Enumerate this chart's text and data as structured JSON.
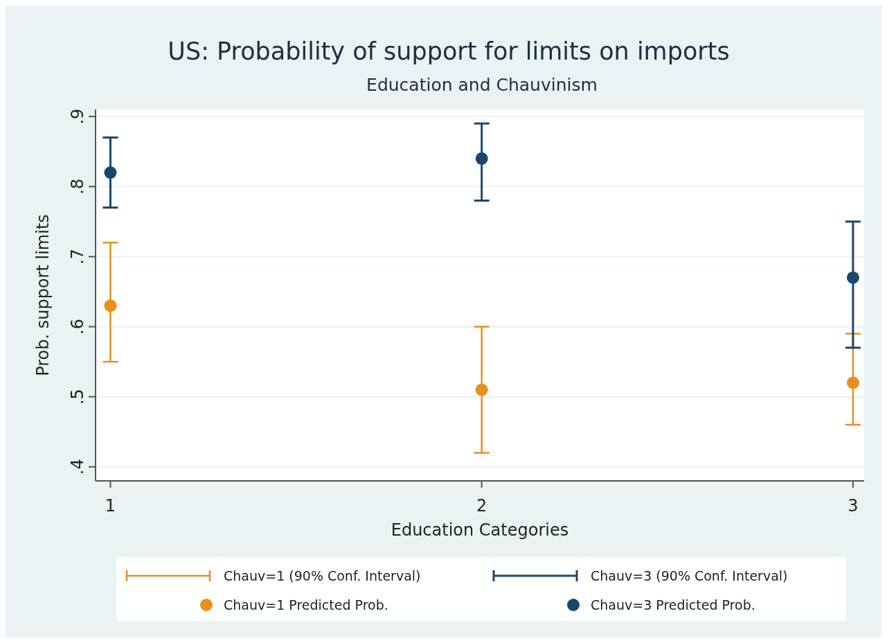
{
  "chart_data": {
    "type": "scatter",
    "title": "US: Probability of support for limits on imports",
    "subtitle": "Education and Chauvinism",
    "xlabel": "Education Categories",
    "ylabel": "Prob. support limits",
    "x": [
      1,
      2,
      3
    ],
    "xlim": [
      0.96,
      3.03
    ],
    "xticks": [
      1,
      2,
      3
    ],
    "ylim": [
      0.38,
      0.91
    ],
    "yticks": [
      {
        "value": 0.4,
        "label": ".4"
      },
      {
        "value": 0.5,
        "label": ".5"
      },
      {
        "value": 0.6,
        "label": ".6"
      },
      {
        "value": 0.7,
        "label": ".7"
      },
      {
        "value": 0.8,
        "label": ".8"
      },
      {
        "value": 0.9,
        "label": ".9"
      }
    ],
    "grid": "y",
    "legend": "bottom",
    "marker": "circle",
    "annotations": [
      "Chauv=1  (90% Conf. Interval)",
      "Chauv=3  (90% Conf. Interval)"
    ],
    "series": [
      {
        "name": "Chauv=1 Predicted Prob.",
        "color": "#e8901c",
        "values": [
          0.63,
          0.51,
          0.52
        ],
        "errors": [
          [
            0.55,
            0.72
          ],
          [
            0.42,
            0.6
          ],
          [
            0.46,
            0.59
          ]
        ]
      },
      {
        "name": "Chauv=3 Predicted Prob.",
        "color": "#1a476f",
        "values": [
          0.82,
          0.84,
          0.67
        ],
        "errors": [
          [
            0.77,
            0.87
          ],
          [
            0.78,
            0.89
          ],
          [
            0.57,
            0.75
          ]
        ]
      }
    ]
  }
}
